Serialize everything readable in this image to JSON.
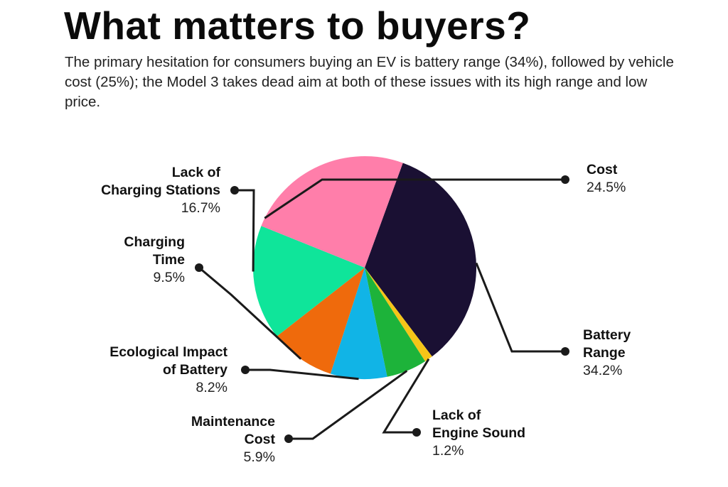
{
  "title": "What matters to buyers?",
  "subtitle": "The primary hesitation for consumers buying an EV is battery range (34%), followed by vehicle cost (25%); the Model 3 takes dead aim at both of these issues with its high range and low price.",
  "chart_data": {
    "type": "pie",
    "slices": [
      {
        "name_lines": [
          "Battery",
          "Range"
        ],
        "value": 34.2,
        "label": "34.2%",
        "color": "#1a1033"
      },
      {
        "name_lines": [
          "Lack of",
          "Engine Sound"
        ],
        "value": 1.2,
        "label": "1.2%",
        "color": "#f5c518"
      },
      {
        "name_lines": [
          "Maintenance",
          "Cost"
        ],
        "value": 5.9,
        "label": "5.9%",
        "color": "#1db33a"
      },
      {
        "name_lines": [
          "Ecological Impact",
          "of Battery"
        ],
        "value": 8.2,
        "label": "8.2%",
        "color": "#11b4e6"
      },
      {
        "name_lines": [
          "Charging",
          "Time"
        ],
        "value": 9.5,
        "label": "9.5%",
        "color": "#ef6a0c"
      },
      {
        "name_lines": [
          "Lack of",
          "Charging Stations"
        ],
        "value": 16.7,
        "label": "16.7%",
        "color": "#0fe59a"
      },
      {
        "name_lines": [
          "Cost"
        ],
        "value": 24.5,
        "label": "24.5%",
        "color": "#ff7eaa"
      }
    ]
  }
}
